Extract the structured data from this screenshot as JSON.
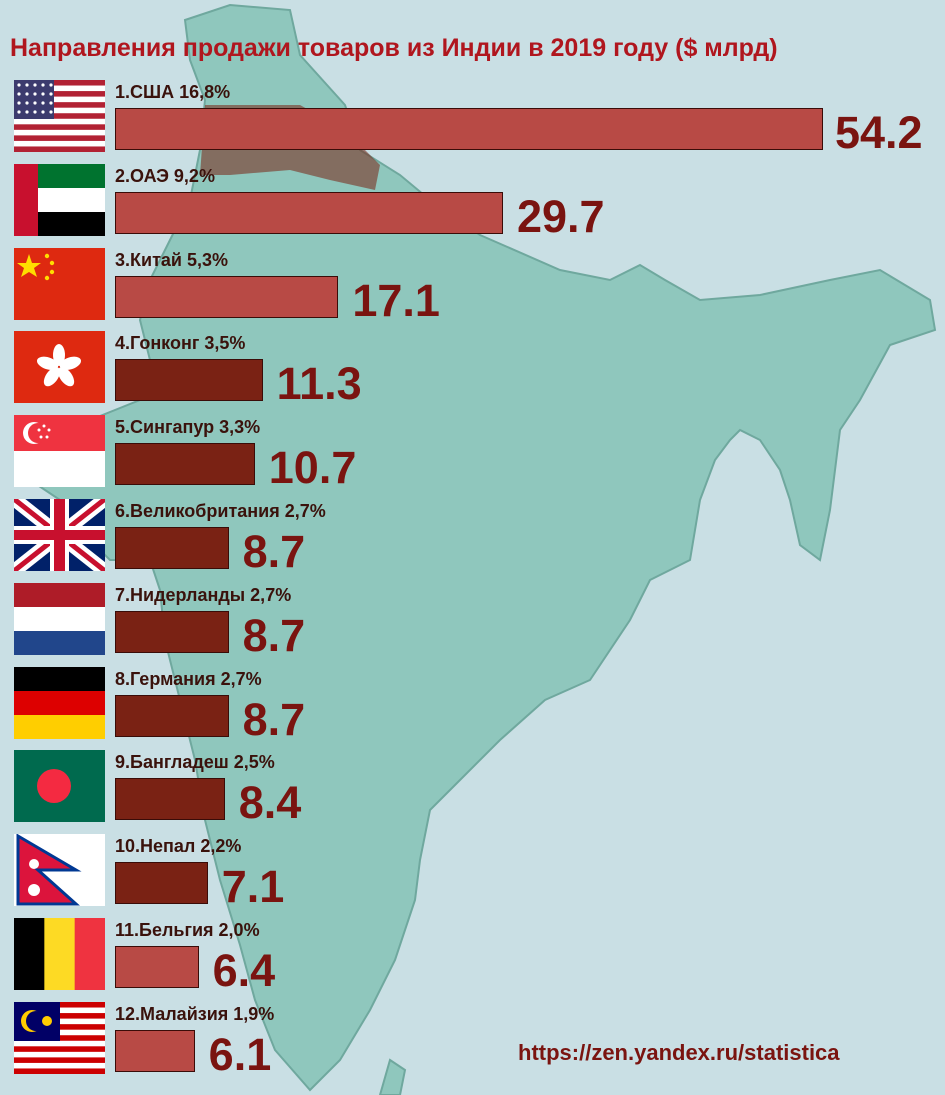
{
  "title": "Направления продажи товаров из Индии в 2019 году ($ млрд)",
  "source_url": "https://zen.yandex.ru/statistica",
  "colors": {
    "bar": "#b84a45",
    "bar_dark": "#7a2214",
    "value_text": "#7a1410",
    "title": "#b0161e",
    "map": "#8fc7bd",
    "sea": "#c9dfe4"
  },
  "chart_data": {
    "type": "bar",
    "orientation": "horizontal",
    "categories": [
      "1.США 16,8%",
      "2.ОАЭ 9,2%",
      "3.Китай 5,3%",
      "4.Гонконг 3,5%",
      "5.Сингапур 3,3%",
      "6.Великобритания 2,7%",
      "7.Нидерланды 2,7%",
      "8.Германия 2,7%",
      "9.Бангладеш 2,5%",
      "10.Непал 2,2%",
      "11.Бельгия 2,0%",
      "12.Малайзия 1,9%"
    ],
    "values": [
      54.2,
      29.7,
      17.1,
      11.3,
      10.7,
      8.7,
      8.7,
      8.7,
      8.4,
      7.1,
      6.4,
      6.1
    ],
    "value_labels": [
      "54.2",
      "29.7",
      "17.1",
      "11.3",
      "10.7",
      "8.7",
      "8.7",
      "8.7",
      "8.4",
      "7.1",
      "6.4",
      "6.1"
    ],
    "flags": [
      "usa",
      "uae",
      "china",
      "hongkong",
      "singapore",
      "uk",
      "netherlands",
      "germany",
      "bangladesh",
      "nepal",
      "belgium",
      "malaysia"
    ],
    "title": "Направления продажи товаров из Индии в 2019 году ($ млрд)",
    "xlabel": "",
    "ylabel": "",
    "grid": false,
    "legend": "none"
  }
}
